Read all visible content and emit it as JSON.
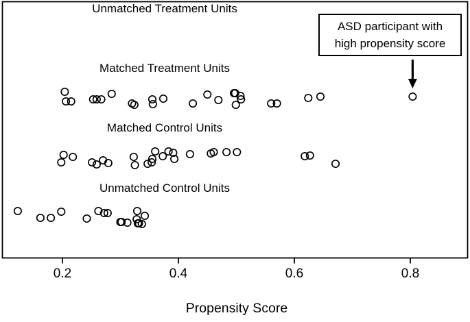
{
  "colors": {
    "foreground": "#000000",
    "background": "#ffffff"
  },
  "chart_data": {
    "type": "scatter",
    "title": "",
    "xlabel": "Propensity Score",
    "xlim": [
      0.1,
      0.9
    ],
    "x_ticks": [
      0.2,
      0.4,
      0.6,
      0.8
    ],
    "x_tick_labels": [
      "0.2",
      "0.4",
      "0.6",
      "0.8"
    ],
    "grid": false,
    "legend": "none",
    "marker": {
      "shape": "open-circle",
      "stroke": "#000000",
      "fill": "none",
      "radius_px": 5.2
    },
    "groups": [
      {
        "label": "Unmatched Treatment Units",
        "points": []
      },
      {
        "label": "Matched Treatment Units",
        "points": [
          {
            "ps": 0.204,
            "dy": -9
          },
          {
            "ps": 0.206,
            "dy": 5
          },
          {
            "ps": 0.215,
            "dy": 5
          },
          {
            "ps": 0.253,
            "dy": 2
          },
          {
            "ps": 0.259,
            "dy": 2
          },
          {
            "ps": 0.267,
            "dy": 2
          },
          {
            "ps": 0.285,
            "dy": -6
          },
          {
            "ps": 0.32,
            "dy": 8
          },
          {
            "ps": 0.324,
            "dy": 10
          },
          {
            "ps": 0.355,
            "dy": 2
          },
          {
            "ps": 0.356,
            "dy": 9
          },
          {
            "ps": 0.374,
            "dy": 1
          },
          {
            "ps": 0.425,
            "dy": 8
          },
          {
            "ps": 0.45,
            "dy": -5
          },
          {
            "ps": 0.469,
            "dy": 3
          },
          {
            "ps": 0.496,
            "dy": -7
          },
          {
            "ps": 0.498,
            "dy": -7
          },
          {
            "ps": 0.499,
            "dy": 10
          },
          {
            "ps": 0.507,
            "dy": -3
          },
          {
            "ps": 0.508,
            "dy": 2
          },
          {
            "ps": 0.56,
            "dy": 8
          },
          {
            "ps": 0.57,
            "dy": 8
          },
          {
            "ps": 0.624,
            "dy": 0
          },
          {
            "ps": 0.645,
            "dy": -2
          },
          {
            "ps": 0.804,
            "dy": -2
          }
        ]
      },
      {
        "label": "Matched Control Units",
        "points": [
          {
            "ps": 0.198,
            "dy": 7
          },
          {
            "ps": 0.202,
            "dy": -4
          },
          {
            "ps": 0.218,
            "dy": -1
          },
          {
            "ps": 0.251,
            "dy": 7
          },
          {
            "ps": 0.259,
            "dy": 10
          },
          {
            "ps": 0.27,
            "dy": 4
          },
          {
            "ps": 0.279,
            "dy": 8
          },
          {
            "ps": 0.323,
            "dy": -1
          },
          {
            "ps": 0.325,
            "dy": 11
          },
          {
            "ps": 0.347,
            "dy": 9
          },
          {
            "ps": 0.354,
            "dy": 7
          },
          {
            "ps": 0.355,
            "dy": 2
          },
          {
            "ps": 0.36,
            "dy": -9
          },
          {
            "ps": 0.373,
            "dy": -2
          },
          {
            "ps": 0.383,
            "dy": -9
          },
          {
            "ps": 0.391,
            "dy": -7
          },
          {
            "ps": 0.393,
            "dy": 2
          },
          {
            "ps": 0.42,
            "dy": -5
          },
          {
            "ps": 0.456,
            "dy": -6
          },
          {
            "ps": 0.461,
            "dy": -8
          },
          {
            "ps": 0.483,
            "dy": -8
          },
          {
            "ps": 0.501,
            "dy": -8
          },
          {
            "ps": 0.618,
            "dy": -2
          },
          {
            "ps": 0.627,
            "dy": -3
          },
          {
            "ps": 0.671,
            "dy": 9
          }
        ]
      },
      {
        "label": "Unmatched Control Units",
        "points": [
          {
            "ps": 0.123,
            "dy": -9
          },
          {
            "ps": 0.162,
            "dy": 1
          },
          {
            "ps": 0.18,
            "dy": 1
          },
          {
            "ps": 0.198,
            "dy": -8
          },
          {
            "ps": 0.242,
            "dy": 2
          },
          {
            "ps": 0.262,
            "dy": -9
          },
          {
            "ps": 0.272,
            "dy": -6
          },
          {
            "ps": 0.278,
            "dy": -6
          },
          {
            "ps": 0.3,
            "dy": 7
          },
          {
            "ps": 0.302,
            "dy": 7
          },
          {
            "ps": 0.312,
            "dy": 8
          },
          {
            "ps": 0.328,
            "dy": 3
          },
          {
            "ps": 0.329,
            "dy": -9
          },
          {
            "ps": 0.33,
            "dy": 9
          },
          {
            "ps": 0.332,
            "dy": 9
          },
          {
            "ps": 0.337,
            "dy": 10
          },
          {
            "ps": 0.342,
            "dy": -2
          }
        ]
      }
    ],
    "annotation": {
      "text_lines": [
        "ASD participant with",
        "high propensity score"
      ],
      "target_ps": 0.804,
      "target_group": "Matched Treatment Units"
    }
  }
}
